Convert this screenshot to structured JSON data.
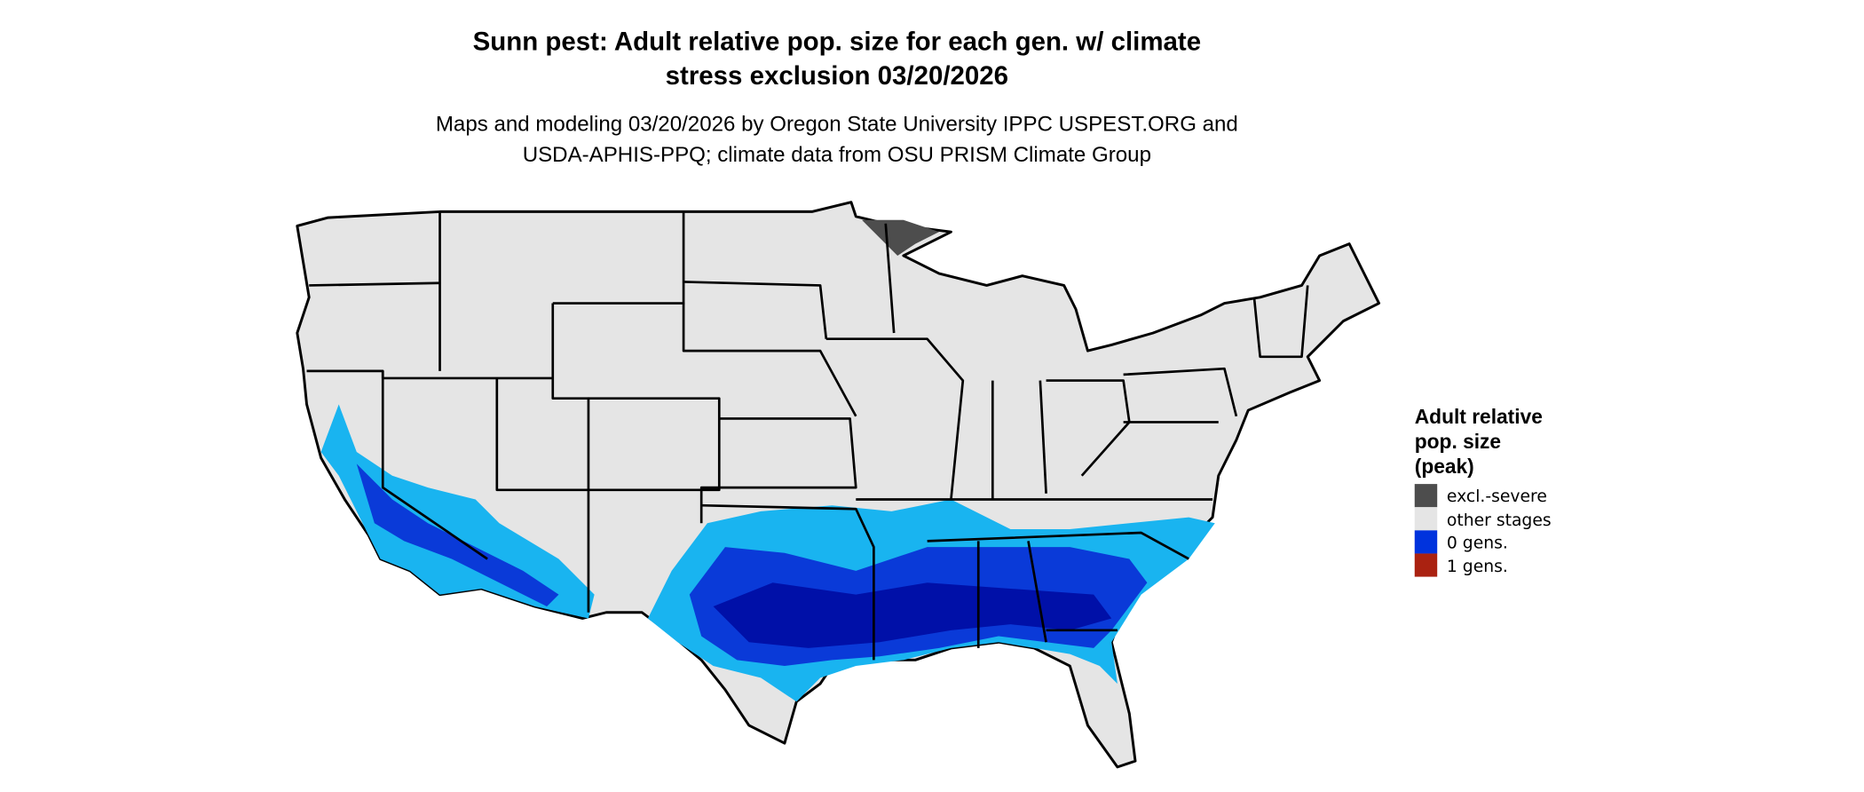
{
  "title_lines": [
    "Sunn pest: Adult relative pop. size for each gen. w/ climate",
    "stress exclusion 03/20/2026"
  ],
  "subtitle_lines": [
    "Maps and modeling 03/20/2026 by Oregon State University IPPC USPEST.ORG and",
    "USDA-APHIS-PPQ; climate data from OSU PRISM Climate Group"
  ],
  "legend": {
    "title_lines": [
      "Adult relative",
      "pop. size",
      "(peak)"
    ],
    "items": [
      {
        "label": "excl.-severe",
        "color": "#4d4d4d"
      },
      {
        "label": "other stages",
        "color": "#e5e5e5"
      },
      {
        "label": "0 gens.",
        "color": "#0033dd"
      },
      {
        "label": "1 gens.",
        "color": "#aa2211"
      }
    ]
  },
  "map_colors": {
    "background_land": "#e5e5e5",
    "low": "#19b4f0",
    "mid": "#0a3ad8",
    "high": "#0010a8",
    "excluded": "#4d4d4d"
  }
}
